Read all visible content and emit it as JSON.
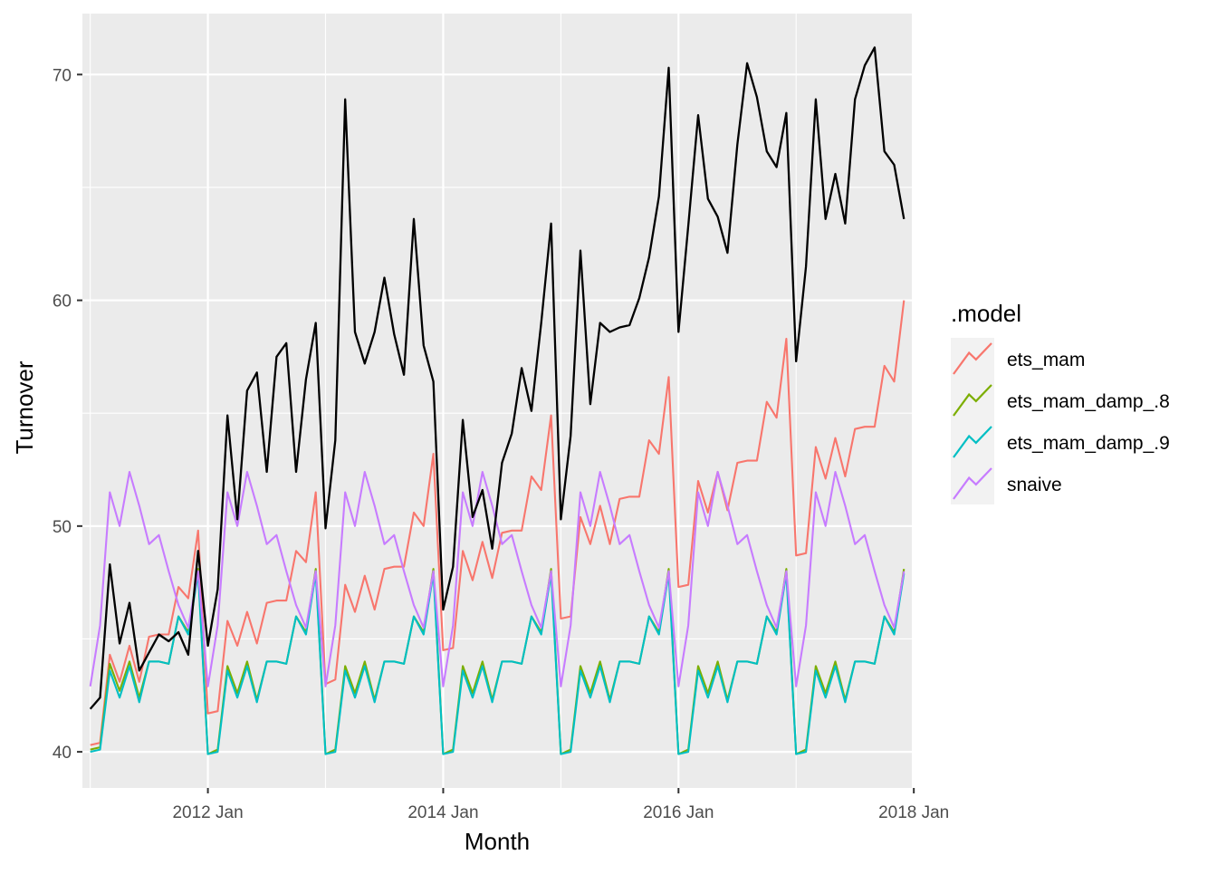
{
  "chart_data": {
    "type": "line",
    "title": "",
    "xlabel": "Month",
    "ylabel": "Turnover",
    "x_start": "2011 Jan",
    "x_end": "2017 Dec",
    "xlim": [
      "2010 Dec",
      "2018 Jan"
    ],
    "ylim": [
      38.4,
      72.7
    ],
    "x_ticks": [
      "2012 Jan",
      "2014 Jan",
      "2016 Jan",
      "2018 Jan"
    ],
    "y_ticks": [
      40,
      50,
      60,
      70
    ],
    "grid": true,
    "legend": {
      "title": ".model",
      "position": "right"
    },
    "actual": {
      "color": "#000000",
      "values": [
        41.9,
        42.4,
        48.3,
        44.8,
        46.6,
        43.6,
        44.4,
        45.2,
        44.9,
        45.3,
        44.3,
        48.9,
        44.7,
        47.2,
        54.9,
        50.3,
        56.0,
        56.8,
        52.4,
        57.5,
        58.1,
        52.4,
        56.5,
        59.0,
        49.9,
        53.8,
        68.9,
        58.6,
        57.2,
        58.6,
        61.0,
        58.5,
        56.7,
        63.6,
        58.0,
        56.4,
        46.3,
        48.2,
        54.7,
        50.4,
        51.6,
        49.0,
        52.8,
        54.1,
        57.0,
        55.1,
        59.0,
        63.4,
        50.3,
        54.0,
        62.2,
        55.4,
        59.0,
        58.6,
        58.8,
        58.9,
        60.1,
        61.9,
        64.6,
        70.3,
        58.6,
        63.3,
        68.2,
        64.5,
        63.7,
        62.1,
        66.9,
        70.5,
        69.0,
        66.6,
        65.9,
        68.3,
        57.3,
        61.5,
        68.9,
        63.6,
        65.6,
        63.4,
        68.9,
        70.4,
        71.2,
        66.6,
        66.0,
        63.6
      ]
    },
    "series": [
      {
        "name": "ets_mam",
        "color": "#F8766D",
        "values": [
          40.3,
          40.4,
          44.3,
          43.1,
          44.7,
          43.1,
          45.1,
          45.2,
          45.2,
          47.3,
          46.8,
          49.8,
          41.7,
          41.8,
          45.8,
          44.7,
          46.2,
          44.8,
          46.6,
          46.7,
          46.7,
          48.9,
          48.4,
          51.5,
          43.0,
          43.2,
          47.4,
          46.2,
          47.8,
          46.3,
          48.1,
          48.2,
          48.2,
          50.6,
          50.0,
          53.2,
          44.5,
          44.6,
          48.9,
          47.6,
          49.3,
          47.7,
          49.7,
          49.8,
          49.8,
          52.2,
          51.6,
          54.9,
          45.9,
          46.0,
          50.4,
          49.2,
          50.9,
          49.2,
          51.2,
          51.3,
          51.3,
          53.8,
          53.2,
          56.6,
          47.3,
          47.4,
          52.0,
          50.6,
          52.4,
          50.7,
          52.8,
          52.9,
          52.9,
          55.5,
          54.8,
          58.3,
          48.7,
          48.8,
          53.5,
          52.1,
          53.9,
          52.2,
          54.3,
          54.4,
          54.4,
          57.1,
          56.4,
          60.0
        ]
      },
      {
        "name": "ets_mam_damp_.8",
        "color": "#7CAE00",
        "values": [
          40.1,
          40.2,
          43.9,
          42.7,
          44.0,
          42.4,
          44.0,
          44.0,
          43.9,
          46.0,
          45.3,
          48.1,
          39.9,
          40.1,
          43.8,
          42.6,
          44.0,
          42.3,
          44.0,
          44.0,
          43.9,
          46.0,
          45.3,
          48.1,
          39.9,
          40.1,
          43.8,
          42.6,
          44.0,
          42.3,
          44.0,
          44.0,
          43.9,
          46.0,
          45.3,
          48.1,
          39.9,
          40.1,
          43.8,
          42.6,
          44.0,
          42.3,
          44.0,
          44.0,
          43.9,
          46.0,
          45.3,
          48.1,
          39.9,
          40.1,
          43.8,
          42.6,
          44.0,
          42.3,
          44.0,
          44.0,
          43.9,
          46.0,
          45.3,
          48.1,
          39.9,
          40.1,
          43.8,
          42.6,
          44.0,
          42.3,
          44.0,
          44.0,
          43.9,
          46.0,
          45.3,
          48.1,
          39.9,
          40.1,
          43.8,
          42.6,
          44.0,
          42.3,
          44.0,
          44.0,
          43.9,
          46.0,
          45.3,
          48.1
        ]
      },
      {
        "name": "ets_mam_damp_.9",
        "color": "#00BFC4",
        "values": [
          40.0,
          40.1,
          43.6,
          42.4,
          43.8,
          42.2,
          44.0,
          44.0,
          43.9,
          46.0,
          45.2,
          47.9,
          39.9,
          40.0,
          43.6,
          42.4,
          43.8,
          42.2,
          44.0,
          44.0,
          43.9,
          46.0,
          45.2,
          47.9,
          39.9,
          40.0,
          43.6,
          42.4,
          43.8,
          42.2,
          44.0,
          44.0,
          43.9,
          46.0,
          45.2,
          47.9,
          39.9,
          40.0,
          43.6,
          42.4,
          43.8,
          42.2,
          44.0,
          44.0,
          43.9,
          46.0,
          45.2,
          47.9,
          39.9,
          40.0,
          43.6,
          42.4,
          43.8,
          42.2,
          44.0,
          44.0,
          43.9,
          46.0,
          45.2,
          47.9,
          39.9,
          40.0,
          43.6,
          42.4,
          43.8,
          42.2,
          44.0,
          44.0,
          43.9,
          46.0,
          45.2,
          47.9,
          39.9,
          40.0,
          43.6,
          42.4,
          43.8,
          42.2,
          44.0,
          44.0,
          43.9,
          46.0,
          45.2,
          47.9
        ]
      },
      {
        "name": "snaive",
        "color": "#C77CFF",
        "values": [
          42.9,
          45.6,
          51.5,
          50.0,
          52.4,
          50.9,
          49.2,
          49.6,
          48.0,
          46.5,
          45.5,
          48.0,
          42.9,
          45.6,
          51.5,
          50.0,
          52.4,
          50.9,
          49.2,
          49.6,
          48.0,
          46.5,
          45.5,
          48.0,
          42.9,
          45.6,
          51.5,
          50.0,
          52.4,
          50.9,
          49.2,
          49.6,
          48.0,
          46.5,
          45.5,
          48.0,
          42.9,
          45.6,
          51.5,
          50.0,
          52.4,
          50.9,
          49.2,
          49.6,
          48.0,
          46.5,
          45.5,
          48.0,
          42.9,
          45.6,
          51.5,
          50.0,
          52.4,
          50.9,
          49.2,
          49.6,
          48.0,
          46.5,
          45.5,
          48.0,
          42.9,
          45.6,
          51.5,
          50.0,
          52.4,
          50.9,
          49.2,
          49.6,
          48.0,
          46.5,
          45.5,
          48.0,
          42.9,
          45.6,
          51.5,
          50.0,
          52.4,
          50.9,
          49.2,
          49.6,
          48.0,
          46.5,
          45.5,
          48.0
        ]
      }
    ]
  },
  "style": {
    "panel_background": "#EBEBEB",
    "grid_color": "#FFFFFF"
  }
}
